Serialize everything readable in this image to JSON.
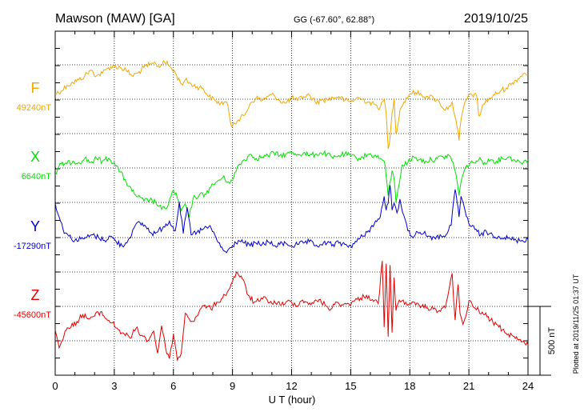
{
  "header": {
    "station": "Mawson (MAW)  [GA]",
    "coords": "GG (-67.60°,  62.88°)",
    "date": "2019/10/25"
  },
  "footer": {
    "plotted": "Plotted at 2019/11/25 01:37  UT"
  },
  "scale": {
    "label": "500 nT",
    "nT": 500
  },
  "chart_data": {
    "type": "line",
    "xlabel": "U T (hour)",
    "ylabel": "",
    "xlim": [
      0,
      24
    ],
    "x_ticks": [
      "0",
      "3",
      "6",
      "9",
      "12",
      "15",
      "18",
      "21",
      "24"
    ],
    "grid": true,
    "series": [
      {
        "name": "F",
        "baseline_label": "49240nT",
        "color": "#f0a800",
        "x": [
          0,
          0.3,
          0.6,
          0.9,
          1.2,
          1.5,
          1.8,
          2.1,
          2.4,
          2.7,
          3.0,
          3.3,
          3.6,
          3.9,
          4.2,
          4.5,
          4.8,
          5.1,
          5.3,
          5.5,
          5.8,
          6.1,
          6.4,
          6.6,
          6.9,
          7.2,
          7.5,
          7.8,
          8.1,
          8.4,
          8.7,
          8.95,
          9.05,
          9.3,
          9.6,
          9.9,
          10.2,
          10.5,
          10.8,
          11.1,
          11.4,
          11.7,
          12.0,
          12.3,
          12.6,
          12.9,
          13.2,
          13.5,
          13.8,
          14.1,
          14.4,
          14.7,
          15.0,
          15.3,
          15.6,
          15.9,
          16.2,
          16.5,
          16.7,
          16.8,
          16.9,
          17.0,
          17.1,
          17.2,
          17.3,
          17.4,
          17.5,
          17.7,
          18.0,
          18.3,
          18.6,
          18.9,
          19.2,
          19.5,
          19.8,
          20.0,
          20.15,
          20.3,
          20.4,
          20.5,
          20.6,
          20.8,
          21.1,
          21.4,
          21.5,
          21.6,
          21.7,
          22.0,
          22.3,
          22.6,
          22.9,
          23.2,
          23.5,
          23.8,
          24.0
        ],
        "y": [
          40,
          60,
          100,
          120,
          140,
          170,
          210,
          170,
          190,
          230,
          240,
          230,
          210,
          170,
          190,
          230,
          250,
          260,
          230,
          280,
          240,
          190,
          110,
          140,
          110,
          90,
          80,
          20,
          -10,
          -30,
          -20,
          -200,
          -170,
          -150,
          -120,
          -30,
          10,
          -10,
          20,
          30,
          -10,
          -30,
          10,
          -10,
          20,
          30,
          -20,
          -10,
          0,
          10,
          20,
          -10,
          -20,
          10,
          0,
          -20,
          -40,
          -60,
          0,
          -100,
          -360,
          -280,
          -100,
          0,
          -250,
          -180,
          -80,
          -20,
          40,
          50,
          30,
          20,
          10,
          -20,
          -80,
          -50,
          -20,
          -130,
          -200,
          -300,
          -150,
          -20,
          40,
          20,
          -120,
          -100,
          -40,
          0,
          30,
          60,
          80,
          120,
          150,
          190,
          180
        ],
        "baseline_nT": 49240
      },
      {
        "name": "X",
        "baseline_label": "6640nT",
        "color": "#00e000",
        "x": [
          0,
          0.3,
          0.6,
          0.9,
          1.2,
          1.5,
          1.8,
          2.1,
          2.4,
          2.7,
          3.0,
          3.3,
          3.6,
          3.9,
          4.2,
          4.5,
          4.8,
          5.1,
          5.4,
          5.7,
          6.0,
          6.2,
          6.4,
          6.6,
          6.8,
          7.0,
          7.3,
          7.6,
          7.9,
          8.2,
          8.5,
          8.8,
          9.0,
          9.3,
          9.6,
          9.9,
          10.2,
          10.5,
          10.8,
          11.1,
          11.4,
          11.7,
          12.0,
          12.3,
          12.6,
          12.9,
          13.2,
          13.5,
          13.8,
          14.1,
          14.4,
          14.7,
          15.0,
          15.3,
          15.6,
          15.9,
          16.2,
          16.5,
          16.7,
          16.8,
          16.9,
          17.0,
          17.1,
          17.2,
          17.3,
          17.4,
          17.6,
          17.9,
          18.2,
          18.5,
          18.8,
          19.1,
          19.4,
          19.7,
          20.0,
          20.2,
          20.35,
          20.5,
          20.6,
          20.7,
          20.9,
          21.2,
          21.5,
          21.8,
          22.1,
          22.4,
          22.7,
          23.0,
          23.3,
          23.6,
          24.0
        ],
        "y": [
          -50,
          30,
          30,
          50,
          40,
          70,
          40,
          70,
          50,
          70,
          40,
          -30,
          -100,
          -170,
          -210,
          -240,
          -230,
          -250,
          -300,
          -280,
          -160,
          -220,
          -310,
          -260,
          -360,
          -220,
          -200,
          -190,
          -140,
          -100,
          -70,
          -100,
          -90,
          20,
          60,
          100,
          70,
          80,
          90,
          110,
          90,
          100,
          110,
          100,
          110,
          90,
          100,
          110,
          100,
          70,
          90,
          100,
          90,
          70,
          80,
          100,
          90,
          70,
          50,
          -60,
          -200,
          -100,
          -20,
          -80,
          -250,
          -160,
          20,
          40,
          80,
          60,
          50,
          60,
          70,
          80,
          90,
          40,
          -50,
          -200,
          -100,
          -50,
          20,
          40,
          60,
          40,
          60,
          50,
          70,
          80,
          60,
          40,
          60
        ],
        "baseline_nT": 6640
      },
      {
        "name": "Y",
        "baseline_label": "-17290nT",
        "color": "#0000d0",
        "x": [
          0,
          0.2,
          0.4,
          0.7,
          1.0,
          1.3,
          1.6,
          1.9,
          2.2,
          2.5,
          2.8,
          3.1,
          3.4,
          3.7,
          4.0,
          4.3,
          4.6,
          4.9,
          5.2,
          5.5,
          5.8,
          6.1,
          6.3,
          6.5,
          6.7,
          6.9,
          7.2,
          7.5,
          7.8,
          8.1,
          8.4,
          8.7,
          9.0,
          9.3,
          9.6,
          9.9,
          10.2,
          10.5,
          10.8,
          11.1,
          11.4,
          11.7,
          12.0,
          12.3,
          12.6,
          12.9,
          13.2,
          13.5,
          13.8,
          14.1,
          14.4,
          14.7,
          15.0,
          15.3,
          15.6,
          15.9,
          16.2,
          16.5,
          16.7,
          16.8,
          16.9,
          17.0,
          17.1,
          17.2,
          17.35,
          17.5,
          17.7,
          17.9,
          18.1,
          18.4,
          18.7,
          19.0,
          19.3,
          19.6,
          19.9,
          20.1,
          20.3,
          20.4,
          20.5,
          20.6,
          20.8,
          21.0,
          21.3,
          21.6,
          21.9,
          22.2,
          22.5,
          22.8,
          23.1,
          23.4,
          23.7,
          24.0
        ],
        "y": [
          250,
          150,
          60,
          10,
          -20,
          -10,
          0,
          20,
          0,
          -20,
          10,
          -30,
          -60,
          -20,
          70,
          110,
          80,
          30,
          40,
          80,
          120,
          50,
          260,
          30,
          220,
          20,
          40,
          60,
          80,
          20,
          -70,
          -110,
          -60,
          -20,
          -40,
          -60,
          -40,
          -50,
          -30,
          -60,
          -50,
          -40,
          -60,
          -50,
          -40,
          -30,
          -60,
          -50,
          -40,
          -50,
          -40,
          -50,
          -60,
          -30,
          10,
          50,
          100,
          150,
          300,
          200,
          250,
          380,
          200,
          250,
          180,
          280,
          160,
          50,
          10,
          40,
          30,
          10,
          -10,
          10,
          30,
          90,
          350,
          260,
          150,
          300,
          200,
          100,
          60,
          20,
          40,
          20,
          10,
          0,
          -10,
          -20,
          -20,
          -10
        ],
        "baseline_nT": -17290
      },
      {
        "name": "Z",
        "baseline_label": "-45600nT",
        "color": "#e00000",
        "x": [
          0,
          0.2,
          0.5,
          0.8,
          1.1,
          1.4,
          1.7,
          2.0,
          2.3,
          2.6,
          2.9,
          3.2,
          3.5,
          3.8,
          4.1,
          4.4,
          4.7,
          5.0,
          5.2,
          5.4,
          5.6,
          5.8,
          6.0,
          6.2,
          6.4,
          6.6,
          6.8,
          7.0,
          7.3,
          7.6,
          7.9,
          8.2,
          8.5,
          8.8,
          9.0,
          9.2,
          9.5,
          9.8,
          10.1,
          10.4,
          10.7,
          11.0,
          11.3,
          11.6,
          11.9,
          12.2,
          12.5,
          12.8,
          13.1,
          13.4,
          13.7,
          14.0,
          14.3,
          14.6,
          14.9,
          15.2,
          15.5,
          15.8,
          16.1,
          16.4,
          16.6,
          16.7,
          16.8,
          16.9,
          17.0,
          17.1,
          17.2,
          17.3,
          17.4,
          17.6,
          17.8,
          18.0,
          18.3,
          18.6,
          18.9,
          19.2,
          19.5,
          19.8,
          20.0,
          20.15,
          20.3,
          20.45,
          20.55,
          20.7,
          20.85,
          21.0,
          21.2,
          21.5,
          21.8,
          22.1,
          22.4,
          22.7,
          23.0,
          23.3,
          23.6,
          23.9,
          24.0
        ],
        "y": [
          -170,
          -300,
          -180,
          -150,
          -110,
          -60,
          -90,
          -70,
          -40,
          -90,
          -120,
          -170,
          -200,
          -230,
          -160,
          -210,
          -250,
          -180,
          -340,
          -140,
          -300,
          -380,
          -200,
          -390,
          -340,
          -50,
          -90,
          -110,
          -40,
          10,
          -20,
          30,
          60,
          120,
          180,
          250,
          200,
          80,
          30,
          40,
          60,
          20,
          30,
          10,
          40,
          10,
          40,
          30,
          20,
          50,
          10,
          -20,
          30,
          10,
          20,
          40,
          60,
          80,
          50,
          20,
          330,
          -150,
          310,
          -220,
          300,
          -190,
          210,
          -30,
          20,
          40,
          30,
          20,
          10,
          0,
          -10,
          -20,
          -30,
          -10,
          130,
          240,
          -100,
          160,
          -50,
          -130,
          -70,
          40,
          0,
          -30,
          -60,
          -100,
          -130,
          -170,
          -200,
          -220,
          -240,
          -280,
          -280
        ],
        "baseline_nT": -45600
      }
    ]
  }
}
